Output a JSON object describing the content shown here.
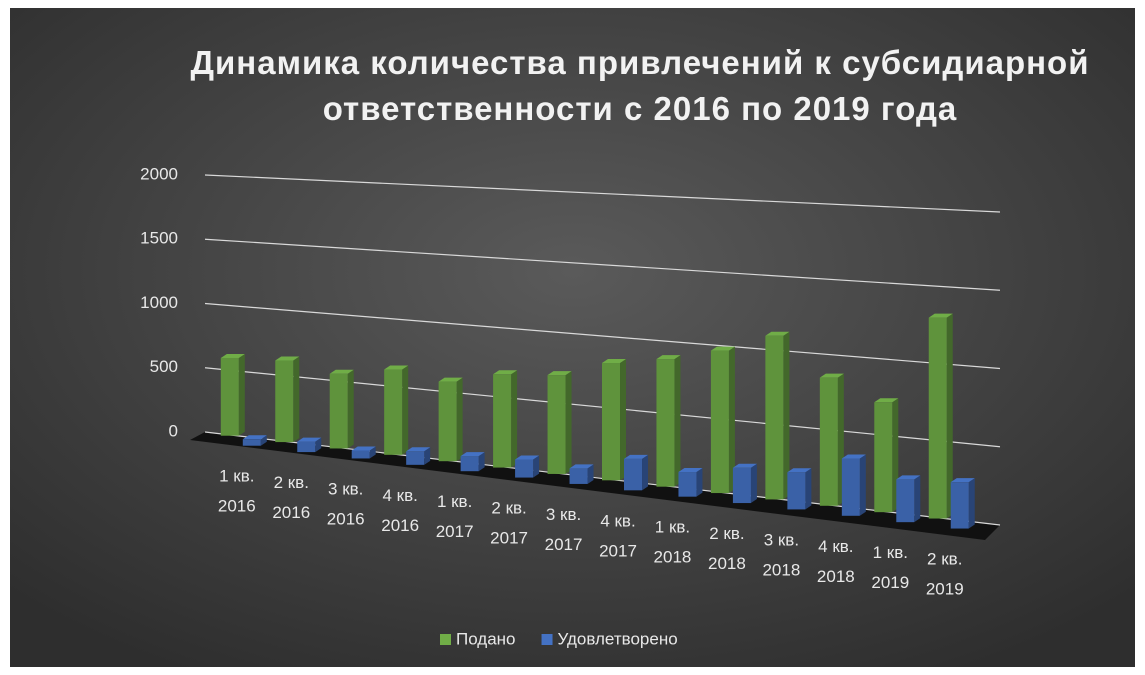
{
  "chart_data": {
    "type": "bar3d",
    "title": "Динамика количества привлечений к субсидиарной ответственности с 2016 по 2019 года",
    "categories": [
      "1 кв. 2016",
      "2 кв. 2016",
      "3 кв. 2016",
      "4 кв. 2016",
      "1 кв. 2017",
      "2 кв. 2017",
      "3 кв. 2017",
      "4 кв. 2017",
      "1 кв. 2018",
      "2 кв. 2018",
      "3 кв. 2018",
      "4 кв. 2018",
      "1 кв. 2019",
      "2 кв. 2019"
    ],
    "series": [
      {
        "name": "Подано",
        "color": "#70ad47",
        "values": [
          600,
          620,
          560,
          630,
          580,
          670,
          700,
          820,
          880,
          970,
          1100,
          850,
          720,
          1300
        ]
      },
      {
        "name": "Удовлетворено",
        "color": "#4472c4",
        "values": [
          50,
          80,
          60,
          100,
          110,
          130,
          110,
          220,
          170,
          240,
          250,
          380,
          280,
          300
        ]
      }
    ],
    "ylim": [
      0,
      2000
    ],
    "yticks": [
      0,
      500,
      1000,
      1500,
      2000
    ],
    "grid": true,
    "legend": "bottom"
  }
}
